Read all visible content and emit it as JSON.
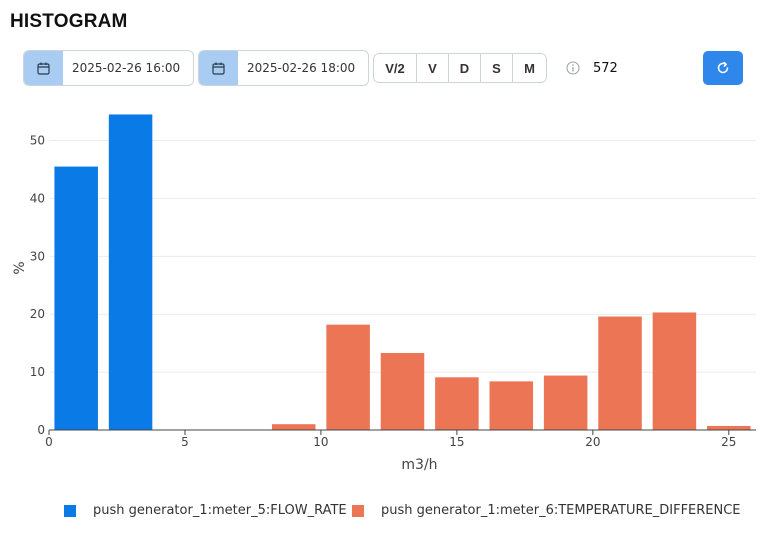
{
  "page": {
    "title": "HISTOGRAM"
  },
  "controls": {
    "start_date": "2025-02-26 16:00",
    "end_date": "2025-02-26 18:00",
    "segments": [
      "V/2",
      "V",
      "D",
      "S",
      "M"
    ],
    "count": "572",
    "icons": {
      "calendar": "calendar-icon",
      "info": "info-icon",
      "refresh": "refresh-icon"
    },
    "accent_color": "#2f86eb",
    "calendar_bg": "#a9cdf2"
  },
  "chart_data": {
    "type": "bar",
    "title": "",
    "xlabel": "m3/h",
    "ylabel": "%",
    "xlim": [
      0,
      26
    ],
    "ylim": [
      0,
      57
    ],
    "x_ticks": [
      0,
      5,
      10,
      15,
      20,
      25
    ],
    "y_ticks": [
      0,
      10,
      20,
      30,
      40,
      50
    ],
    "grid": true,
    "legend_position": "bottom",
    "bar_width": 1.6,
    "series": [
      {
        "name": "push generator_1:meter_5:FLOW_RATE",
        "color": "#0a7be6",
        "x": [
          1,
          3
        ],
        "values": [
          45.5,
          54.5
        ]
      },
      {
        "name": "push generator_1:meter_6:TEMPERATURE_DIFFERENCE",
        "color": "#eb7554",
        "x": [
          9,
          11,
          13,
          15,
          17,
          19,
          21,
          23,
          25
        ],
        "values": [
          1.0,
          18.2,
          13.3,
          9.1,
          8.4,
          9.4,
          19.6,
          20.3,
          0.7
        ]
      }
    ]
  }
}
